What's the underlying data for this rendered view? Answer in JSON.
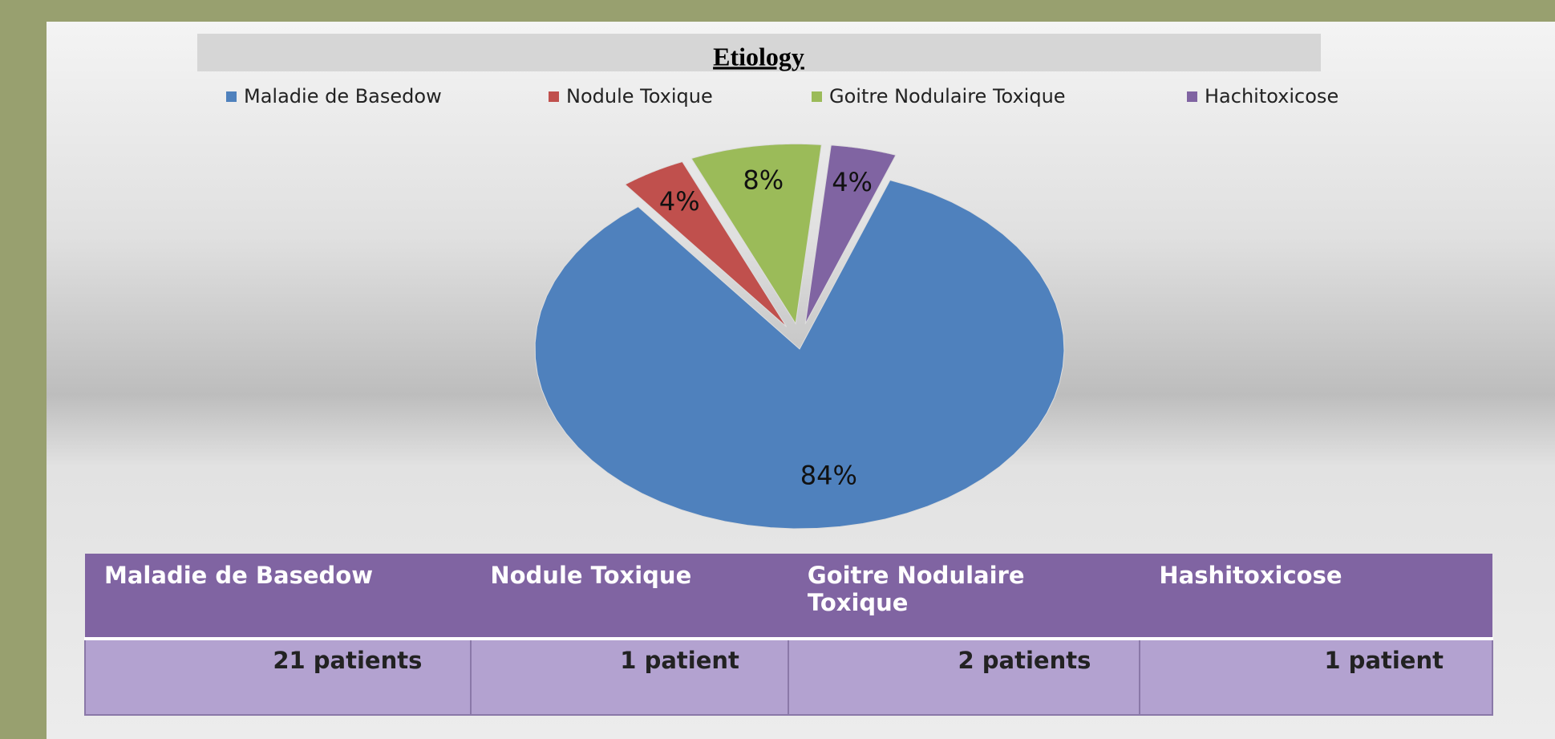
{
  "chart_data": {
    "type": "pie",
    "title": "Etiology",
    "categories": [
      "Maladie de Basedow",
      "Nodule Toxique",
      "Goitre Nodulaire Toxique",
      "Hachitoxicose"
    ],
    "values": [
      84,
      4,
      8,
      4
    ],
    "value_labels": [
      "84%",
      "4%",
      "8%",
      "4%"
    ],
    "colors": [
      "#4f81bd",
      "#c0504d",
      "#9bbb59",
      "#8064a2"
    ],
    "legend": "top"
  },
  "table": {
    "header": [
      "Maladie de Basedow",
      "Nodule Toxique",
      "Goitre Nodulaire Toxique",
      "Hashitoxicose"
    ],
    "rows": [
      [
        "21 patients",
        "1 patient",
        "2 patients",
        "1 patient"
      ]
    ]
  }
}
